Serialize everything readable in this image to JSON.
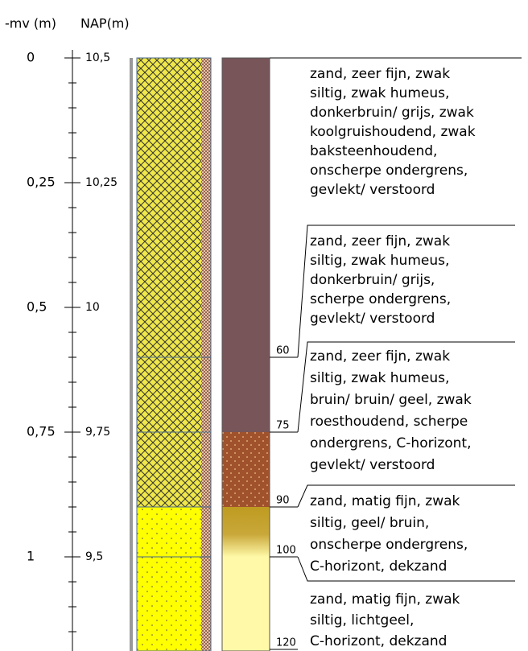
{
  "headers": {
    "depth": "-mv (m)",
    "nap": "NAP(m)"
  },
  "depth_scale": [
    {
      "value": 0,
      "label": "0"
    },
    {
      "value": 0.25,
      "label": "0,25"
    },
    {
      "value": 0.5,
      "label": "0,5"
    },
    {
      "value": 0.75,
      "label": "0,75"
    },
    {
      "value": 1,
      "label": "1"
    }
  ],
  "nap_scale": [
    {
      "value": 10.5,
      "label": "10,5"
    },
    {
      "value": 10.25,
      "label": "10,25"
    },
    {
      "value": 10,
      "label": "10"
    },
    {
      "value": 9.75,
      "label": "9,75"
    },
    {
      "value": 9.5,
      "label": "9,5"
    }
  ],
  "layer_boundaries_cm": [
    60,
    75,
    90,
    100,
    120
  ],
  "descriptions": [
    [
      "zand, zeer fijn, zwak",
      "siltig, zwak humeus,",
      "donkerbruin/ grijs, zwak",
      "koolgruishoudend, zwak",
      "baksteenhoudend,",
      "onscherpe ondergrens,",
      "gevlekt/ verstoord"
    ],
    [
      "zand, zeer fijn, zwak",
      "siltig, zwak humeus,",
      "donkerbruin/ grijs,",
      "scherpe ondergrens,",
      "gevlekt/ verstoord"
    ],
    [
      "zand, zeer fijn, zwak",
      "siltig, zwak humeus,",
      "bruin/ bruin/ geel, zwak",
      "roesthoudend, scherpe",
      "ondergrens, C-horizont,",
      "gevlekt/ verstoord"
    ],
    [
      "zand, matig fijn, zwak",
      "siltig, geel/ bruin,",
      "onscherpe ondergrens,",
      "C-horizont, dekzand"
    ],
    [
      "zand, matig fijn, zwak",
      "siltig, lichtgeel,",
      "C-horizont, dekzand"
    ]
  ]
}
